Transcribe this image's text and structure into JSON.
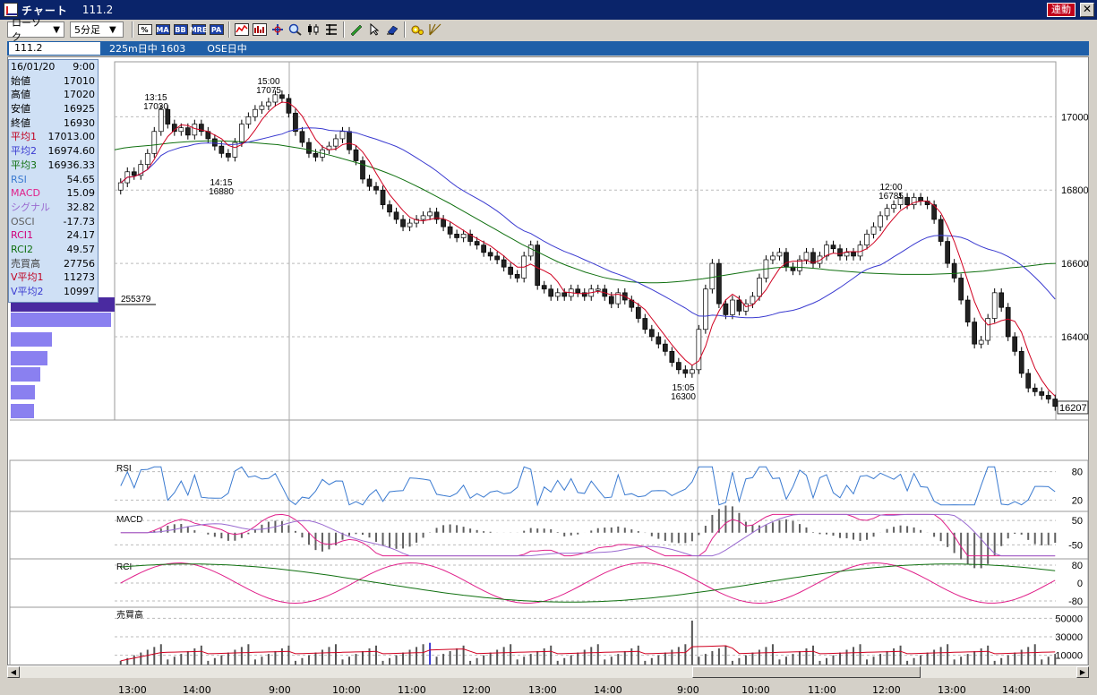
{
  "window": {
    "title": "チャート",
    "code": "111.2",
    "linked_label": "連動",
    "close_glyph": "✕"
  },
  "toolbar": {
    "chart_type": "ローソク",
    "interval": "5分足",
    "dropdown_arrow": "▼",
    "buttons": [
      {
        "name": "indicator-config-icon",
        "text": "%"
      },
      {
        "name": "ma-button",
        "text": "MA"
      },
      {
        "name": "bb-button",
        "text": "BB"
      },
      {
        "name": "mre-button",
        "text": "MRE"
      },
      {
        "name": "pa-button",
        "text": "PA"
      }
    ]
  },
  "status": {
    "code": "111.2",
    "contract": "225m日中 1603",
    "session": "OSE日中"
  },
  "info_panel": {
    "date": "16/01/20",
    "time": "9:00",
    "rows": [
      {
        "label": "始値",
        "value": "17010",
        "color": "#000000"
      },
      {
        "label": "高値",
        "value": "17020",
        "color": "#000000"
      },
      {
        "label": "安値",
        "value": "16925",
        "color": "#000000"
      },
      {
        "label": "終値",
        "value": "16930",
        "color": "#000000"
      },
      {
        "label": "平均1",
        "value": "17013.00",
        "color": "#c00020"
      },
      {
        "label": "平均2",
        "value": "16974.60",
        "color": "#3a3ad0"
      },
      {
        "label": "平均3",
        "value": "16936.33",
        "color": "#107010"
      },
      {
        "label": "RSI",
        "value": "54.65",
        "color": "#3a7ad0"
      },
      {
        "label": "MACD",
        "value": "15.09",
        "color": "#e0208a"
      },
      {
        "label": "シグナル",
        "value": "32.82",
        "color": "#9a6ad0"
      },
      {
        "label": "OSCI",
        "value": "-17.73",
        "color": "#606060"
      },
      {
        "label": "RCI1",
        "value": "24.17",
        "color": "#d0007a"
      },
      {
        "label": "RCI2",
        "value": "49.57",
        "color": "#107010"
      },
      {
        "label": "売買高",
        "value": "27756",
        "color": "#404040"
      },
      {
        "label": "V平均1",
        "value": "11273",
        "color": "#c00020"
      },
      {
        "label": "V平均2",
        "value": "10997",
        "color": "#3a3ad0"
      }
    ]
  },
  "price_axis": {
    "ticks": [
      "17000",
      "16800",
      "16600",
      "16400"
    ],
    "current_price": "16207"
  },
  "annotations": [
    {
      "time": "13:15",
      "price": "17030"
    },
    {
      "time": "14:15",
      "price": "16880"
    },
    {
      "time": "15:00",
      "price": "17075"
    },
    {
      "time": "15:05",
      "price": "16300"
    },
    {
      "time": "12:00",
      "price": "16785"
    }
  ],
  "volume_profile": {
    "max_label": "255379",
    "color": "#8a80f0"
  },
  "panels": {
    "rsi": {
      "label": "RSI",
      "ticks": [
        "80",
        "20"
      ]
    },
    "macd": {
      "label": "MACD",
      "ticks": [
        "50",
        "-50"
      ]
    },
    "rci": {
      "label": "RCI",
      "ticks": [
        "80",
        "0",
        "-80"
      ]
    },
    "volume": {
      "label": "売買高",
      "ticks": [
        "50000",
        "30000",
        "10000"
      ]
    }
  },
  "x_axis": [
    "13:00",
    "14:00",
    "9:00",
    "10:00",
    "11:00",
    "12:00",
    "13:00",
    "14:00",
    "9:00",
    "10:00",
    "11:00",
    "12:00",
    "13:00",
    "14:00"
  ],
  "colors": {
    "candle_up": "#ffffff",
    "candle_down": "#222222",
    "ma1": "#d00020",
    "ma2": "#3a3ad0",
    "ma3": "#107010",
    "rsi": "#3a7ad0",
    "macd": "#e0208a",
    "signal": "#9a6ad0",
    "rci1": "#e0208a",
    "rci2": "#107010"
  },
  "chart_data": {
    "type": "candlestick",
    "close": [
      16820,
      16850,
      16840,
      16870,
      16900,
      16960,
      17020,
      16980,
      16960,
      16970,
      16950,
      16980,
      16960,
      16940,
      16920,
      16900,
      16890,
      16930,
      16980,
      17000,
      17020,
      17030,
      17040,
      17060,
      17050,
      17010,
      16960,
      16930,
      16900,
      16890,
      16910,
      16920,
      16940,
      16960,
      16910,
      16880,
      16830,
      16810,
      16800,
      16760,
      16740,
      16720,
      16700,
      16710,
      16720,
      16730,
      16740,
      16720,
      16700,
      16680,
      16670,
      16680,
      16660,
      16650,
      16630,
      16620,
      16610,
      16590,
      16570,
      16560,
      16620,
      16650,
      16540,
      16530,
      16510,
      16520,
      16510,
      16530,
      16520,
      16510,
      16530,
      16530,
      16510,
      16490,
      16520,
      16500,
      16480,
      16450,
      16420,
      16400,
      16380,
      16360,
      16330,
      16310,
      16300,
      16310,
      16420,
      16530,
      16600,
      16490,
      16460,
      16500,
      16470,
      16490,
      16510,
      16560,
      16610,
      16620,
      16630,
      16590,
      16580,
      16610,
      16630,
      16600,
      16620,
      16650,
      16640,
      16620,
      16630,
      16620,
      16650,
      16680,
      16700,
      16730,
      16750,
      16760,
      16780,
      16760,
      16780,
      16770,
      16760,
      16720,
      16660,
      16600,
      16560,
      16500,
      16440,
      16380,
      16390,
      16450,
      16520,
      16480,
      16400,
      16360,
      16300,
      16260,
      16250,
      16240,
      16230,
      16210
    ],
    "ma3": [
      16910,
      16915,
      16918,
      16920,
      16922,
      16925,
      16928,
      16930,
      16932,
      16933,
      16934,
      16934,
      16934,
      16933,
      16932,
      16930,
      16928,
      16926,
      16924,
      16920,
      16916,
      16912,
      16906,
      16900,
      16894,
      16887,
      16880,
      16873,
      16865,
      16857,
      16848,
      16838,
      16827,
      16815,
      16803,
      16790,
      16777,
      16764,
      16750,
      16736,
      16722,
      16708,
      16694,
      16680,
      16666,
      16652,
      16640,
      16628,
      16616,
      16604,
      16594,
      16585,
      16576,
      16569,
      16562,
      16557,
      16553,
      16550,
      16548,
      16547,
      16547,
      16548,
      16550,
      16552,
      16555,
      16558,
      16562,
      16566,
      16570,
      16574,
      16578,
      16582,
      16585,
      16588,
      16590,
      16590,
      16589,
      16587,
      16585,
      16582,
      16580,
      16578,
      16576,
      16574,
      16573,
      16572,
      16571,
      16570,
      16570,
      16570,
      16570,
      16571,
      16572,
      16573,
      16575,
      16577,
      16579,
      16582,
      16585,
      16588,
      16590,
      16593,
      16596,
      16599,
      16600
    ]
  }
}
